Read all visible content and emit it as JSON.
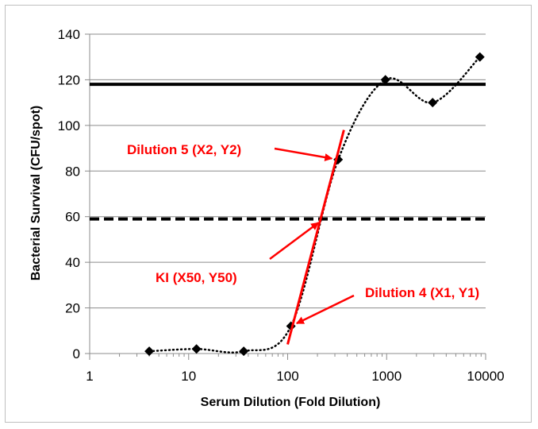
{
  "chart_data": {
    "type": "scatter",
    "xscale": "log",
    "xlabel": "Serum Dilution (Fold Dilution)",
    "ylabel": "Bacterial Survival (CFU/spot)",
    "xlim": [
      1,
      10000
    ],
    "ylim": [
      0,
      140
    ],
    "x_ticks": [
      1,
      10,
      100,
      1000,
      10000
    ],
    "x_tick_labels": [
      "1",
      "10",
      "100",
      "1000",
      "10000"
    ],
    "y_ticks": [
      0,
      20,
      40,
      60,
      80,
      100,
      120,
      140
    ],
    "y_tick_labels": [
      "0",
      "20",
      "40",
      "60",
      "80",
      "100",
      "120",
      "140"
    ],
    "grid": "horizontal",
    "legend": "none",
    "series": [
      {
        "x": [
          4,
          12,
          36,
          108,
          324,
          972,
          2916,
          8748
        ],
        "y": [
          1,
          2,
          1,
          12,
          85,
          120,
          110,
          130
        ],
        "marker": "diamond",
        "line": "dotted-smooth",
        "color": "#000000"
      }
    ],
    "reference_lines": [
      {
        "y": 118,
        "style": "solid",
        "color": "#000000"
      },
      {
        "y": 59,
        "style": "dashed",
        "color": "#000000"
      }
    ],
    "fit_line": {
      "x": [
        100,
        370
      ],
      "y": [
        4,
        98
      ],
      "color": "#ff0000"
    },
    "annotations": [
      {
        "text": "Dilution 5 (X2, Y2)",
        "color": "#ff0000",
        "arrow_to": [
          324,
          85
        ]
      },
      {
        "text": "KI (X50, Y50)",
        "color": "#ff0000",
        "arrow_to": [
          230,
          59
        ]
      },
      {
        "text": "Dilution 4 (X1, Y1)",
        "color": "#ff0000",
        "arrow_to": [
          108,
          12
        ]
      }
    ]
  }
}
